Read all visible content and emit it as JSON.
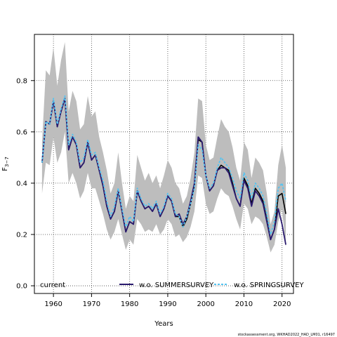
{
  "chart_data": {
    "type": "line",
    "title": "",
    "xlabel": "Years",
    "ylabel_main": "F",
    "ylabel_sub": "3−7",
    "xlim": [
      1955,
      2023
    ],
    "ylim": [
      -0.03,
      0.98
    ],
    "x_ticks": [
      1960,
      1970,
      1980,
      1990,
      2000,
      2010,
      2020
    ],
    "y_ticks": [
      0.0,
      0.2,
      0.4,
      0.6,
      0.8
    ],
    "y_tick_labels": [
      "0.0",
      "0.2",
      "0.4",
      "0.6",
      "0.8"
    ],
    "grid": true,
    "legend_position": "bottom",
    "credit": "stockassessment.org, WKHAD2022_HAD_LM01, r16497",
    "colors": {
      "band": "#bdbdbd",
      "current": "#000000",
      "summer": "#2a1a6e",
      "spring": "#55c3f0",
      "grid": "#444444"
    },
    "x": [
      1957,
      1958,
      1959,
      1960,
      1961,
      1962,
      1963,
      1964,
      1965,
      1966,
      1967,
      1968,
      1969,
      1970,
      1971,
      1972,
      1973,
      1974,
      1975,
      1976,
      1977,
      1978,
      1979,
      1980,
      1981,
      1982,
      1983,
      1984,
      1985,
      1986,
      1987,
      1988,
      1989,
      1990,
      1991,
      1992,
      1993,
      1994,
      1995,
      1996,
      1997,
      1998,
      1999,
      2000,
      2001,
      2002,
      2003,
      2004,
      2005,
      2006,
      2007,
      2008,
      2009,
      2010,
      2011,
      2012,
      2013,
      2014,
      2015,
      2016,
      2017,
      2018,
      2019,
      2020,
      2021
    ],
    "band": {
      "upper": [
        0.56,
        0.84,
        0.82,
        0.93,
        0.78,
        0.88,
        0.95,
        0.68,
        0.76,
        0.72,
        0.61,
        0.63,
        0.74,
        0.66,
        0.68,
        0.58,
        0.52,
        0.45,
        0.36,
        0.4,
        0.52,
        0.4,
        0.3,
        0.35,
        0.33,
        0.51,
        0.46,
        0.41,
        0.44,
        0.4,
        0.43,
        0.38,
        0.43,
        0.49,
        0.46,
        0.4,
        0.38,
        0.32,
        0.35,
        0.42,
        0.52,
        0.73,
        0.72,
        0.55,
        0.49,
        0.5,
        0.58,
        0.65,
        0.62,
        0.6,
        0.54,
        0.46,
        0.41,
        0.56,
        0.53,
        0.42,
        0.5,
        0.48,
        0.45,
        0.36,
        0.24,
        0.29,
        0.47,
        0.55,
        0.46
      ],
      "lower": [
        0.36,
        0.48,
        0.47,
        0.58,
        0.48,
        0.52,
        0.6,
        0.4,
        0.44,
        0.4,
        0.34,
        0.37,
        0.44,
        0.38,
        0.38,
        0.33,
        0.28,
        0.22,
        0.18,
        0.21,
        0.26,
        0.2,
        0.14,
        0.18,
        0.16,
        0.26,
        0.24,
        0.21,
        0.22,
        0.21,
        0.24,
        0.2,
        0.22,
        0.26,
        0.24,
        0.19,
        0.2,
        0.17,
        0.19,
        0.23,
        0.29,
        0.43,
        0.42,
        0.32,
        0.28,
        0.29,
        0.34,
        0.38,
        0.36,
        0.35,
        0.31,
        0.26,
        0.22,
        0.32,
        0.3,
        0.24,
        0.27,
        0.26,
        0.24,
        0.19,
        0.13,
        0.16,
        0.25,
        0.3,
        0.15
      ]
    },
    "series": [
      {
        "name": "current",
        "values": [
          0.48,
          0.64,
          0.63,
          0.72,
          0.62,
          0.68,
          0.73,
          0.53,
          0.58,
          0.55,
          0.46,
          0.48,
          0.56,
          0.49,
          0.51,
          0.45,
          0.39,
          0.31,
          0.26,
          0.29,
          0.37,
          0.29,
          0.21,
          0.25,
          0.24,
          0.37,
          0.33,
          0.3,
          0.31,
          0.29,
          0.32,
          0.27,
          0.3,
          0.35,
          0.33,
          0.27,
          0.27,
          0.23,
          0.26,
          0.32,
          0.39,
          0.57,
          0.56,
          0.43,
          0.37,
          0.39,
          0.45,
          0.47,
          0.46,
          0.45,
          0.4,
          0.34,
          0.31,
          0.42,
          0.39,
          0.32,
          0.38,
          0.36,
          0.33,
          0.26,
          0.18,
          0.22,
          0.35,
          0.36,
          0.28
        ]
      },
      {
        "name": "w.o. SUMMERSURVEY",
        "values": [
          0.48,
          0.64,
          0.63,
          0.72,
          0.62,
          0.68,
          0.73,
          0.53,
          0.58,
          0.55,
          0.46,
          0.48,
          0.56,
          0.49,
          0.51,
          0.45,
          0.39,
          0.31,
          0.26,
          0.29,
          0.37,
          0.29,
          0.21,
          0.25,
          0.24,
          0.37,
          0.33,
          0.3,
          0.31,
          0.29,
          0.32,
          0.27,
          0.3,
          0.35,
          0.33,
          0.27,
          0.28,
          0.24,
          0.27,
          0.33,
          0.4,
          0.58,
          0.56,
          0.43,
          0.37,
          0.39,
          0.45,
          0.46,
          0.46,
          0.44,
          0.39,
          0.34,
          0.31,
          0.41,
          0.38,
          0.31,
          0.37,
          0.35,
          0.32,
          0.25,
          0.18,
          0.22,
          0.3,
          0.24,
          0.16
        ]
      },
      {
        "name": "w.o. SPRINGSURVEY",
        "values": [
          0.48,
          0.64,
          0.63,
          0.73,
          0.63,
          0.69,
          0.74,
          0.55,
          0.59,
          0.56,
          0.48,
          0.5,
          0.57,
          0.51,
          0.52,
          0.46,
          0.41,
          0.33,
          0.27,
          0.31,
          0.38,
          0.3,
          0.23,
          0.27,
          0.25,
          0.38,
          0.34,
          0.31,
          0.32,
          0.3,
          0.33,
          0.28,
          0.31,
          0.36,
          0.34,
          0.28,
          0.27,
          0.23,
          0.27,
          0.32,
          0.38,
          0.55,
          0.53,
          0.43,
          0.38,
          0.4,
          0.46,
          0.5,
          0.48,
          0.46,
          0.42,
          0.37,
          0.34,
          0.44,
          0.41,
          0.34,
          0.4,
          0.38,
          0.35,
          0.28,
          0.2,
          0.25,
          0.38,
          0.4,
          0.33
        ]
      }
    ]
  }
}
